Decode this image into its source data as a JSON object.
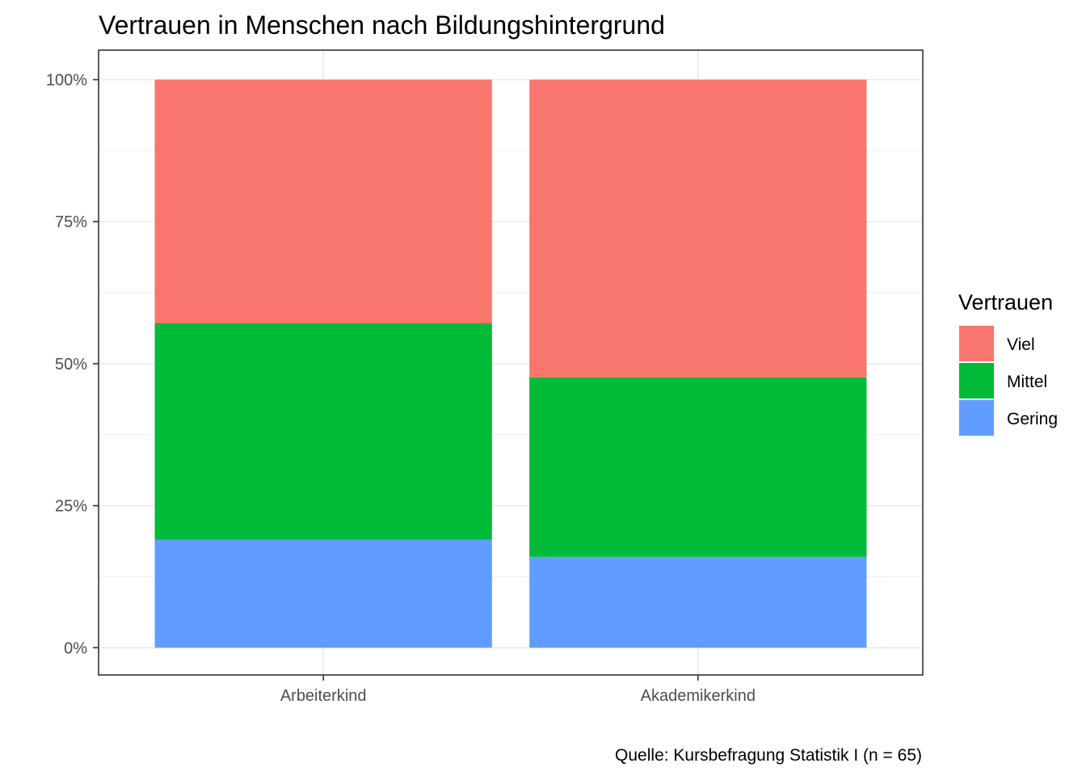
{
  "chart_data": {
    "type": "bar",
    "stacked": true,
    "normalized": true,
    "title": "Vertrauen in Menschen nach Bildungshintergrund",
    "xlabel": "",
    "ylabel": "",
    "categories": [
      "Arbeiterkind",
      "Akademikerkind"
    ],
    "series": [
      {
        "name": "Gering",
        "color": "#619CFF",
        "values": [
          19.0,
          16.0
        ]
      },
      {
        "name": "Mittel",
        "color": "#00BA38",
        "values": [
          38.1,
          31.6
        ]
      },
      {
        "name": "Viel",
        "color": "#F8766D",
        "values": [
          42.9,
          52.4
        ]
      }
    ],
    "y_ticks": [
      0,
      25,
      50,
      75,
      100
    ],
    "y_tick_labels": [
      "0%",
      "25%",
      "50%",
      "75%",
      "100%"
    ],
    "ylim": [
      -4.8,
      105.2
    ],
    "grid": true,
    "legend": {
      "title": "Vertrauen",
      "position": "right",
      "order": [
        "Viel",
        "Mittel",
        "Gering"
      ]
    },
    "caption": "Quelle: Kursbefragung Statistik I (n = 65)"
  }
}
